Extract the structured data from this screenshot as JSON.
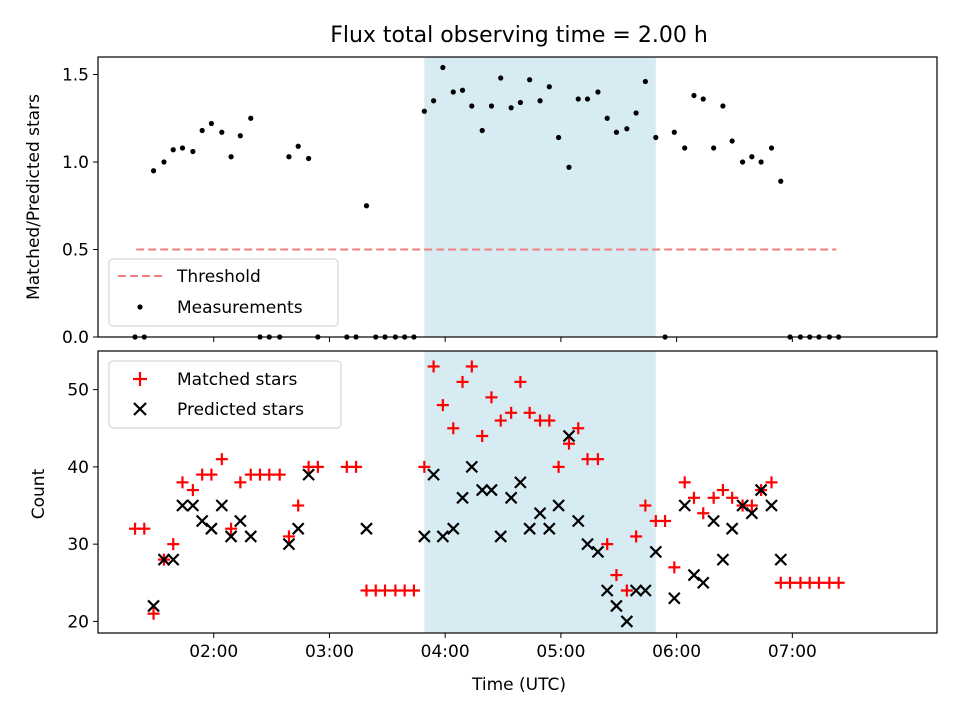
{
  "figure_title": "Flux total observing time = 2.00 h",
  "colors": {
    "band": "#add8e6",
    "threshold": "#f08080",
    "matched": "#ff0000",
    "predicted": "#000000",
    "measurement": "#000000"
  },
  "chart_data": [
    {
      "type": "scatter",
      "title": "Flux total observing time = 2.00 h",
      "xlabel": "",
      "ylabel": "Matched/Predicted stars",
      "xlim": [
        1.0,
        8.25
      ],
      "ylim": [
        0,
        1.6
      ],
      "yticks": [
        "0.0",
        "0.5",
        "1.0",
        "1.5"
      ],
      "ytick_values": [
        0,
        0.5,
        1.0,
        1.5
      ],
      "highlight_band": [
        3.82,
        5.82
      ],
      "threshold": {
        "label": "Threshold",
        "y": 0.5,
        "x_range": [
          1.33,
          7.38
        ]
      },
      "legend": [
        "Threshold",
        "Measurements"
      ],
      "legend_position": "lower-left",
      "series": [
        {
          "name": "Measurements",
          "points": [
            [
              1.32,
              0.0
            ],
            [
              1.4,
              0.0
            ],
            [
              1.48,
              0.95
            ],
            [
              1.57,
              1.0
            ],
            [
              1.65,
              1.07
            ],
            [
              1.73,
              1.08
            ],
            [
              1.82,
              1.06
            ],
            [
              1.9,
              1.18
            ],
            [
              1.98,
              1.22
            ],
            [
              2.07,
              1.17
            ],
            [
              2.15,
              1.03
            ],
            [
              2.23,
              1.15
            ],
            [
              2.32,
              1.25
            ],
            [
              2.4,
              0.0
            ],
            [
              2.48,
              0.0
            ],
            [
              2.57,
              0.0
            ],
            [
              2.65,
              1.03
            ],
            [
              2.73,
              1.09
            ],
            [
              2.82,
              1.02
            ],
            [
              2.9,
              0.0
            ],
            [
              3.15,
              0.0
            ],
            [
              3.23,
              0.0
            ],
            [
              3.32,
              0.75
            ],
            [
              3.4,
              0.0
            ],
            [
              3.48,
              0.0
            ],
            [
              3.57,
              0.0
            ],
            [
              3.65,
              0.0
            ],
            [
              3.73,
              0.0
            ],
            [
              3.82,
              1.29
            ],
            [
              3.9,
              1.35
            ],
            [
              3.98,
              1.54
            ],
            [
              4.07,
              1.4
            ],
            [
              4.15,
              1.41
            ],
            [
              4.23,
              1.32
            ],
            [
              4.32,
              1.18
            ],
            [
              4.4,
              1.32
            ],
            [
              4.48,
              1.48
            ],
            [
              4.57,
              1.31
            ],
            [
              4.65,
              1.34
            ],
            [
              4.73,
              1.47
            ],
            [
              4.82,
              1.35
            ],
            [
              4.9,
              1.43
            ],
            [
              4.98,
              1.14
            ],
            [
              5.07,
              0.97
            ],
            [
              5.15,
              1.36
            ],
            [
              5.23,
              1.36
            ],
            [
              5.32,
              1.4
            ],
            [
              5.4,
              1.25
            ],
            [
              5.48,
              1.17
            ],
            [
              5.57,
              1.19
            ],
            [
              5.65,
              1.28
            ],
            [
              5.73,
              1.46
            ],
            [
              5.82,
              1.14
            ],
            [
              5.9,
              0.0
            ],
            [
              5.98,
              1.17
            ],
            [
              6.07,
              1.08
            ],
            [
              6.15,
              1.38
            ],
            [
              6.23,
              1.36
            ],
            [
              6.32,
              1.08
            ],
            [
              6.4,
              1.32
            ],
            [
              6.48,
              1.12
            ],
            [
              6.57,
              1.0
            ],
            [
              6.65,
              1.03
            ],
            [
              6.73,
              1.0
            ],
            [
              6.82,
              1.08
            ],
            [
              6.9,
              0.89
            ],
            [
              6.98,
              0.0
            ],
            [
              7.07,
              0.0
            ],
            [
              7.15,
              0.0
            ],
            [
              7.23,
              0.0
            ],
            [
              7.32,
              0.0
            ],
            [
              7.4,
              0.0
            ]
          ]
        }
      ]
    },
    {
      "type": "scatter",
      "title": "",
      "xlabel": "Time (UTC)",
      "ylabel": "Count",
      "xlim": [
        1.0,
        8.25
      ],
      "ylim": [
        18.5,
        55
      ],
      "yticks": [
        "20",
        "30",
        "40",
        "50"
      ],
      "ytick_values": [
        20,
        30,
        40,
        50
      ],
      "xticks": [
        "02:00",
        "03:00",
        "04:00",
        "05:00",
        "06:00",
        "07:00"
      ],
      "xtick_values": [
        2,
        3,
        4,
        5,
        6,
        7
      ],
      "highlight_band": [
        3.82,
        5.82
      ],
      "legend": [
        "Matched stars",
        "Predicted stars"
      ],
      "legend_position": "upper-left",
      "series": [
        {
          "name": "Matched stars",
          "marker": "plus",
          "points": [
            [
              1.32,
              32
            ],
            [
              1.4,
              32
            ],
            [
              1.48,
              21
            ],
            [
              1.57,
              28
            ],
            [
              1.65,
              30
            ],
            [
              1.73,
              38
            ],
            [
              1.82,
              37
            ],
            [
              1.9,
              39
            ],
            [
              1.98,
              39
            ],
            [
              2.07,
              41
            ],
            [
              2.15,
              32
            ],
            [
              2.23,
              38
            ],
            [
              2.32,
              39
            ],
            [
              2.4,
              39
            ],
            [
              2.48,
              39
            ],
            [
              2.57,
              39
            ],
            [
              2.65,
              31
            ],
            [
              2.73,
              35
            ],
            [
              2.82,
              40
            ],
            [
              2.9,
              40
            ],
            [
              3.15,
              40
            ],
            [
              3.23,
              40
            ],
            [
              3.32,
              24
            ],
            [
              3.4,
              24
            ],
            [
              3.48,
              24
            ],
            [
              3.57,
              24
            ],
            [
              3.65,
              24
            ],
            [
              3.73,
              24
            ],
            [
              3.82,
              40
            ],
            [
              3.9,
              53
            ],
            [
              3.98,
              48
            ],
            [
              4.07,
              45
            ],
            [
              4.15,
              51
            ],
            [
              4.23,
              53
            ],
            [
              4.32,
              44
            ],
            [
              4.4,
              49
            ],
            [
              4.48,
              46
            ],
            [
              4.57,
              47
            ],
            [
              4.65,
              51
            ],
            [
              4.73,
              47
            ],
            [
              4.82,
              46
            ],
            [
              4.9,
              46
            ],
            [
              4.98,
              40
            ],
            [
              5.07,
              43
            ],
            [
              5.15,
              45
            ],
            [
              5.23,
              41
            ],
            [
              5.32,
              41
            ],
            [
              5.4,
              30
            ],
            [
              5.48,
              26
            ],
            [
              5.57,
              24
            ],
            [
              5.65,
              31
            ],
            [
              5.73,
              35
            ],
            [
              5.82,
              33
            ],
            [
              5.9,
              33
            ],
            [
              5.98,
              27
            ],
            [
              6.07,
              38
            ],
            [
              6.15,
              36
            ],
            [
              6.23,
              34
            ],
            [
              6.32,
              36
            ],
            [
              6.4,
              37
            ],
            [
              6.48,
              36
            ],
            [
              6.57,
              35
            ],
            [
              6.65,
              35
            ],
            [
              6.73,
              37
            ],
            [
              6.82,
              38
            ],
            [
              6.9,
              25
            ],
            [
              6.98,
              25
            ],
            [
              7.07,
              25
            ],
            [
              7.15,
              25
            ],
            [
              7.23,
              25
            ],
            [
              7.32,
              25
            ],
            [
              7.4,
              25
            ]
          ]
        },
        {
          "name": "Predicted stars",
          "marker": "x",
          "points": [
            [
              1.48,
              22
            ],
            [
              1.57,
              28
            ],
            [
              1.65,
              28
            ],
            [
              1.73,
              35
            ],
            [
              1.82,
              35
            ],
            [
              1.9,
              33
            ],
            [
              1.98,
              32
            ],
            [
              2.07,
              35
            ],
            [
              2.15,
              31
            ],
            [
              2.23,
              33
            ],
            [
              2.32,
              31
            ],
            [
              2.65,
              30
            ],
            [
              2.73,
              32
            ],
            [
              2.82,
              39
            ],
            [
              3.32,
              32
            ],
            [
              3.82,
              31
            ],
            [
              3.9,
              39
            ],
            [
              3.98,
              31
            ],
            [
              4.07,
              32
            ],
            [
              4.15,
              36
            ],
            [
              4.23,
              40
            ],
            [
              4.32,
              37
            ],
            [
              4.4,
              37
            ],
            [
              4.48,
              31
            ],
            [
              4.57,
              36
            ],
            [
              4.65,
              38
            ],
            [
              4.73,
              32
            ],
            [
              4.82,
              34
            ],
            [
              4.9,
              32
            ],
            [
              4.98,
              35
            ],
            [
              5.07,
              44
            ],
            [
              5.15,
              33
            ],
            [
              5.23,
              30
            ],
            [
              5.32,
              29
            ],
            [
              5.4,
              24
            ],
            [
              5.48,
              22
            ],
            [
              5.57,
              20
            ],
            [
              5.65,
              24
            ],
            [
              5.73,
              24
            ],
            [
              5.82,
              29
            ],
            [
              5.98,
              23
            ],
            [
              6.07,
              35
            ],
            [
              6.15,
              26
            ],
            [
              6.23,
              25
            ],
            [
              6.32,
              33
            ],
            [
              6.4,
              28
            ],
            [
              6.48,
              32
            ],
            [
              6.57,
              35
            ],
            [
              6.65,
              34
            ],
            [
              6.73,
              37
            ],
            [
              6.82,
              35
            ],
            [
              6.9,
              28
            ]
          ]
        }
      ]
    }
  ]
}
